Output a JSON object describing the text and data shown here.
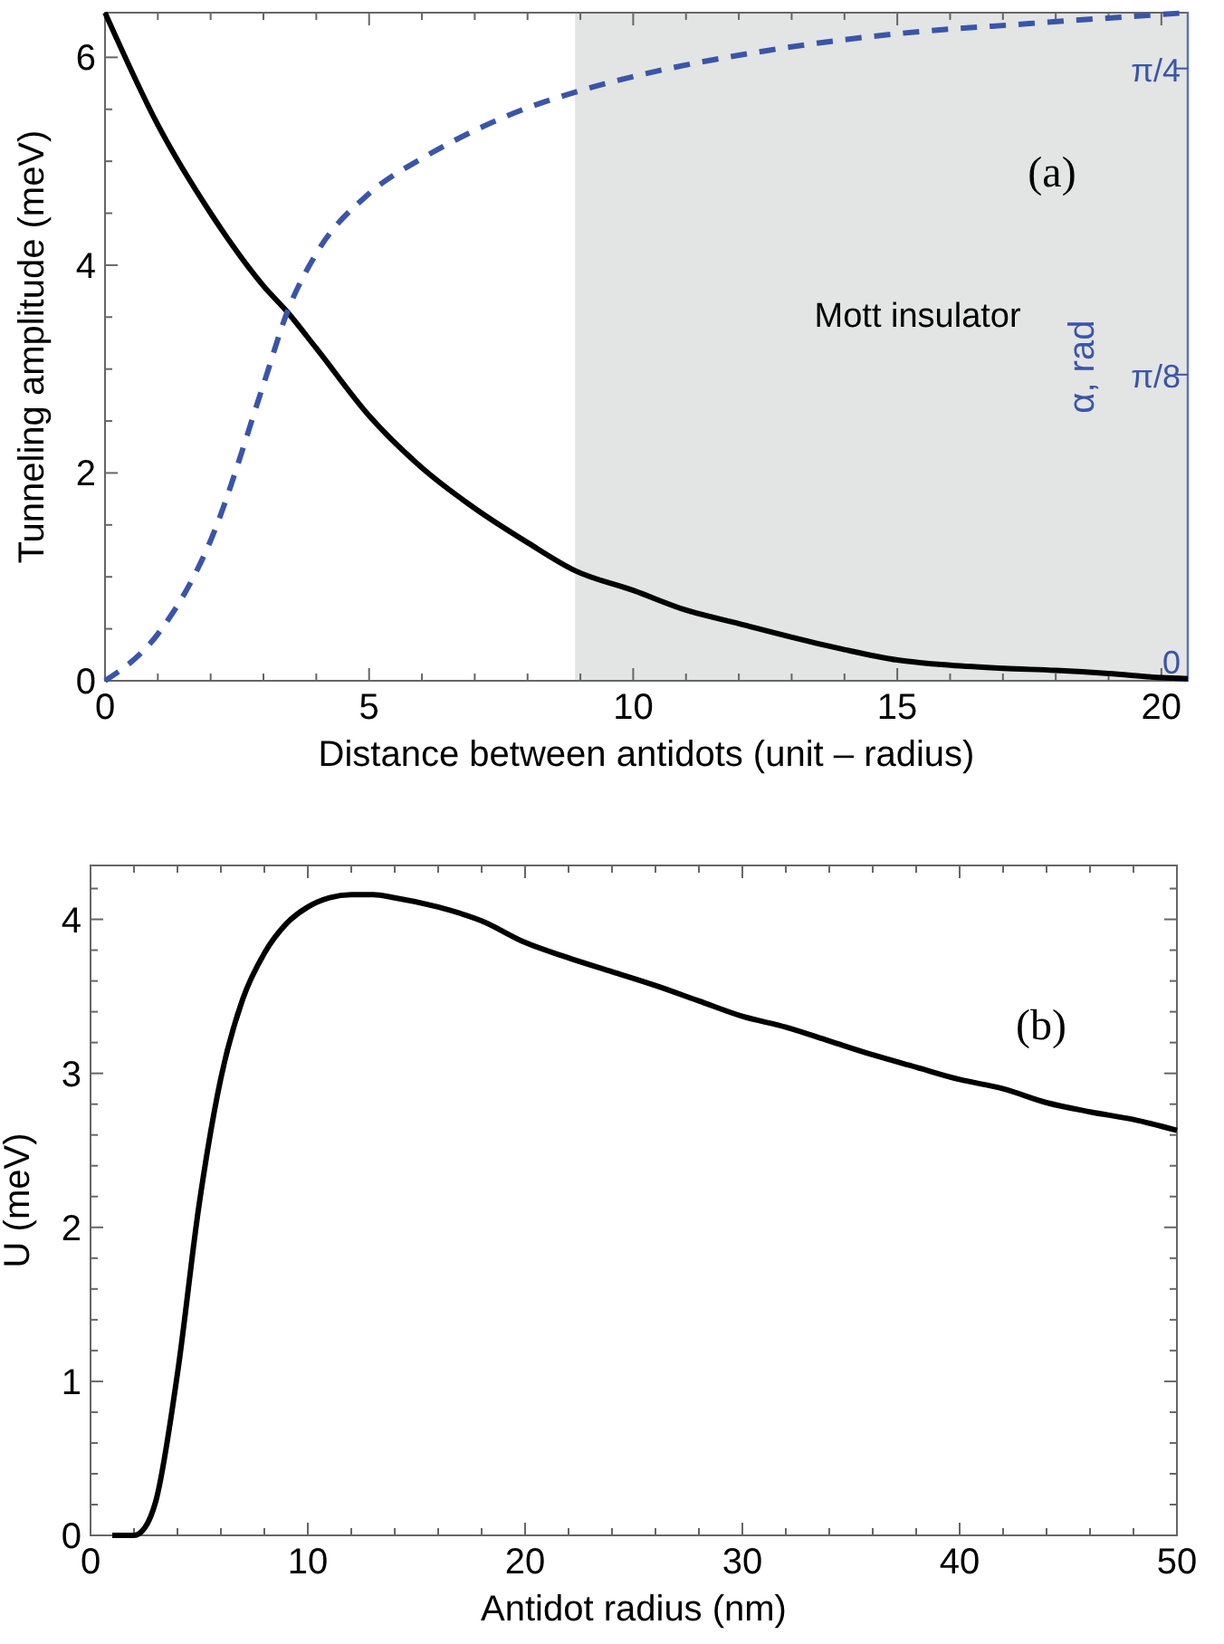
{
  "chart_data": [
    {
      "type": "line",
      "xlabel": "Distance between antidots (unit – radius)",
      "ylabel": "Tunneling amplitude (meV)",
      "y2label": "α, rad",
      "xlim": [
        0,
        20.5
      ],
      "ylim": [
        0,
        6.43
      ],
      "y2lim": [
        0,
        0.857
      ],
      "xticks": [
        0,
        {
          "value": 1,
          "label": null
        },
        {
          "value": 2,
          "label": null
        },
        {
          "value": 3,
          "label": null
        },
        {
          "value": 4,
          "label": null
        },
        5,
        {
          "value": 6,
          "label": null
        },
        {
          "value": 7,
          "label": null
        },
        {
          "value": 8,
          "label": null
        },
        {
          "value": 9,
          "label": null
        },
        10,
        {
          "value": 11,
          "label": null
        },
        {
          "value": 12,
          "label": null
        },
        {
          "value": 13,
          "label": null
        },
        {
          "value": 14,
          "label": null
        },
        15,
        {
          "value": 16,
          "label": null
        },
        {
          "value": 17,
          "label": null
        },
        {
          "value": 18,
          "label": null
        },
        {
          "value": 19,
          "label": null
        },
        20
      ],
      "yticks": [
        0,
        {
          "value": 0.5,
          "label": null
        },
        {
          "value": 1,
          "label": null
        },
        {
          "value": 1.5,
          "label": null
        },
        2,
        {
          "value": 2.5,
          "label": null
        },
        {
          "value": 3,
          "label": null
        },
        {
          "value": 3.5,
          "label": null
        },
        4,
        {
          "value": 4.5,
          "label": null
        },
        {
          "value": 5,
          "label": null
        },
        {
          "value": 5.5,
          "label": null
        },
        6
      ],
      "y2ticks": [
        0,
        {
          "value": 0.3927,
          "label": "π/8"
        },
        {
          "value": 0.7854,
          "label": "π/4"
        }
      ],
      "bands": [
        {
          "axis": "x",
          "from": 8.9,
          "to": 20.5,
          "label": "Mott insulator",
          "color": "#e3e4e4"
        }
      ],
      "annotations": [
        "(a)"
      ],
      "series": [
        {
          "color": "#000000",
          "line_style": "solid",
          "x": [
            0,
            1,
            2,
            3,
            3.45,
            4,
            5,
            6,
            7,
            8,
            8.9,
            10,
            11,
            12,
            13,
            14,
            15,
            16,
            17,
            18,
            19,
            20,
            20.5
          ],
          "values": [
            6.43,
            5.35,
            4.5,
            3.8,
            3.55,
            3.2,
            2.55,
            2.05,
            1.66,
            1.33,
            1.06,
            0.87,
            0.68,
            0.55,
            0.42,
            0.3,
            0.2,
            0.15,
            0.12,
            0.1,
            0.07,
            0.03,
            0.02
          ]
        },
        {
          "color": "#3a55a8",
          "line_style": "dashed",
          "axis": "y2",
          "x": [
            0,
            1,
            2,
            3,
            3.45,
            4,
            5,
            6,
            7,
            8,
            9,
            10,
            12.5,
            15,
            17.5,
            20.5
          ],
          "values": [
            0,
            0.06,
            0.18,
            0.38,
            0.473,
            0.548,
            0.625,
            0.67,
            0.706,
            0.735,
            0.757,
            0.775,
            0.808,
            0.83,
            0.843,
            0.857
          ]
        }
      ]
    },
    {
      "type": "line",
      "xlabel": "Antidot radius (nm)",
      "ylabel": "U (meV)",
      "xlim": [
        0,
        50
      ],
      "ylim": [
        0,
        4.35
      ],
      "xticks": [
        0,
        {
          "value": 2,
          "label": null
        },
        {
          "value": 4,
          "label": null
        },
        {
          "value": 6,
          "label": null
        },
        {
          "value": 8,
          "label": null
        },
        10,
        {
          "value": 12,
          "label": null
        },
        {
          "value": 14,
          "label": null
        },
        {
          "value": 16,
          "label": null
        },
        {
          "value": 18,
          "label": null
        },
        20,
        {
          "value": 22,
          "label": null
        },
        {
          "value": 24,
          "label": null
        },
        {
          "value": 26,
          "label": null
        },
        {
          "value": 28,
          "label": null
        },
        30,
        {
          "value": 32,
          "label": null
        },
        {
          "value": 34,
          "label": null
        },
        {
          "value": 36,
          "label": null
        },
        {
          "value": 38,
          "label": null
        },
        40,
        {
          "value": 42,
          "label": null
        },
        {
          "value": 44,
          "label": null
        },
        {
          "value": 46,
          "label": null
        },
        {
          "value": 48,
          "label": null
        },
        50
      ],
      "yticks": [
        0,
        {
          "value": 0.2,
          "label": null
        },
        {
          "value": 0.4,
          "label": null
        },
        {
          "value": 0.6,
          "label": null
        },
        {
          "value": 0.8,
          "label": null
        },
        1,
        {
          "value": 1.2,
          "label": null
        },
        {
          "value": 1.4,
          "label": null
        },
        {
          "value": 1.6,
          "label": null
        },
        {
          "value": 1.8,
          "label": null
        },
        2,
        {
          "value": 2.2,
          "label": null
        },
        {
          "value": 2.4,
          "label": null
        },
        {
          "value": 2.6,
          "label": null
        },
        {
          "value": 2.8,
          "label": null
        },
        3,
        {
          "value": 3.2,
          "label": null
        },
        {
          "value": 3.4,
          "label": null
        },
        {
          "value": 3.6,
          "label": null
        },
        {
          "value": 3.8,
          "label": null
        },
        4,
        {
          "value": 4.2,
          "label": null
        }
      ],
      "annotations": [
        "(b)"
      ],
      "series": [
        {
          "color": "#000000",
          "line_style": "solid",
          "x": [
            1,
            2,
            2.5,
            3,
            4,
            5,
            6,
            7,
            8,
            9,
            10,
            11,
            12,
            13,
            14,
            16,
            18,
            20,
            22,
            24,
            26,
            28,
            30,
            32,
            34,
            36,
            38,
            40,
            42,
            44,
            46,
            48,
            50
          ],
          "values": [
            0,
            0,
            0.05,
            0.22,
            1.05,
            2.15,
            2.97,
            3.48,
            3.78,
            3.97,
            4.08,
            4.14,
            4.16,
            4.16,
            4.14,
            4.08,
            3.99,
            3.85,
            3.75,
            3.66,
            3.57,
            3.47,
            3.37,
            3.3,
            3.21,
            3.12,
            3.04,
            2.96,
            2.9,
            2.81,
            2.75,
            2.7,
            2.63
          ]
        }
      ]
    }
  ]
}
